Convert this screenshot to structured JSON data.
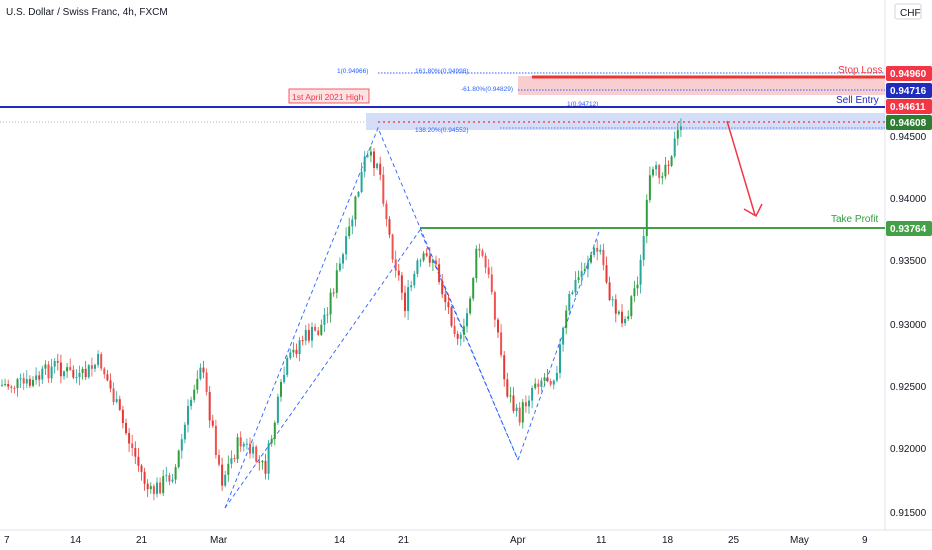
{
  "header": {
    "title": "U.S. Dollar / Swiss Franc, 4h, FXCM",
    "currency": "CHF",
    "corner_value": "0"
  },
  "chart_data": {
    "type": "candlestick",
    "symbol": "USDCHF",
    "timeframe": "4h",
    "y_ticks": [
      "0.94500",
      "0.94000",
      "0.93500",
      "0.93000",
      "0.92500",
      "0.92000",
      "0.91500"
    ],
    "x_ticks": [
      "7",
      "14",
      "21",
      "Mar",
      "14",
      "21",
      "Apr",
      "11",
      "18",
      "25",
      "May",
      "9"
    ],
    "levels": {
      "stop_loss": {
        "label": "Stop Loss",
        "value": "0.94960"
      },
      "fib_blue": {
        "value": "0.94716"
      },
      "sell_entry": {
        "label": "Sell Entry",
        "value": "0.94611"
      },
      "current": {
        "value": "0.94608"
      },
      "take_profit": {
        "label": "Take Profit",
        "value": "0.93764"
      }
    },
    "annotations": {
      "high_label": "1st April 2021 High",
      "fib_1": "1(0.94966)",
      "fib_161": "161.80%(0.94998)",
      "fib_neg61": "-61.80%(0.94829)",
      "fib_1b": "1(0.94712)",
      "fib_138": "138.20%(0.94552)"
    },
    "colors": {
      "up": "#26a69a",
      "down": "#ef5350",
      "up_alt": "#2e9e3e",
      "down_alt": "#e53935",
      "blue": "#1e2bbd",
      "green": "#43a047",
      "red": "#f23645",
      "fib": "#2962ff"
    }
  }
}
